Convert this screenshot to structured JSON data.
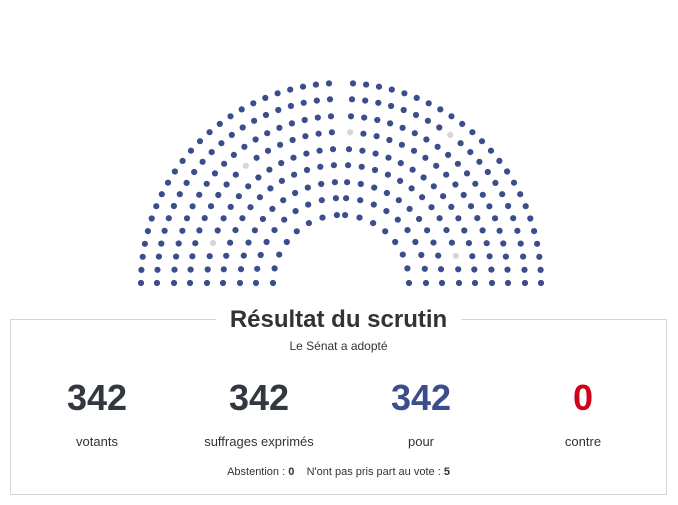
{
  "colors": {
    "pour": "#3b4d8a",
    "contre": "#d0021b",
    "neutral": "#333740",
    "empty_seat": "#d6d6d6"
  },
  "chart_data": {
    "type": "hemicycle",
    "seats": {
      "pour": 342,
      "non_votants": 5
    }
  },
  "result": {
    "title": "Résultat du scrutin",
    "subtitle": "Le Sénat a adopté",
    "stats": [
      {
        "value": "342",
        "label": "votants"
      },
      {
        "value": "342",
        "label": "suffrages exprimés"
      },
      {
        "value": "342",
        "label": "pour"
      },
      {
        "value": "0",
        "label": "contre"
      }
    ],
    "abstention_label": "Abstention :",
    "abstention_value": "0",
    "non_participation_label": "N'ont pas pris part au vote :",
    "non_participation_value": "5"
  }
}
